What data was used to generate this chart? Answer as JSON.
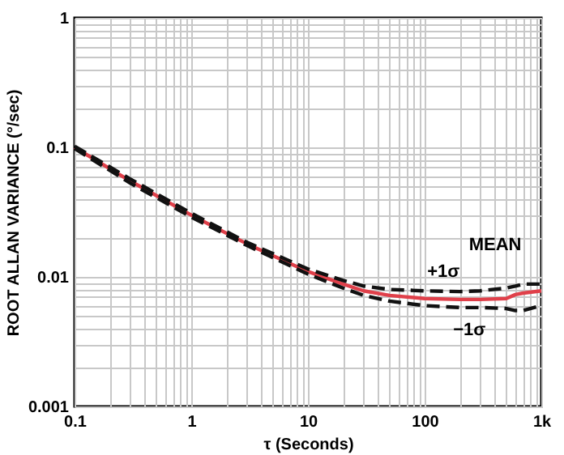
{
  "chart_data": {
    "type": "line",
    "xlabel": "τ (Seconds)",
    "ylabel": "ROOT ALLAN VARIANCE (°/sec)",
    "log": "xy",
    "grid": true,
    "x": [
      0.1,
      0.3,
      1,
      3,
      10,
      20,
      30,
      50,
      100,
      200,
      300,
      500,
      600,
      700,
      1000
    ],
    "xlim": [
      0.1,
      1000
    ],
    "xticks": [
      0.1,
      1,
      10,
      100,
      {
        "value": 1000,
        "label": "1k"
      }
    ],
    "ylim": [
      0.001,
      1
    ],
    "yticks": [
      0.001,
      0.01,
      0.1,
      1
    ],
    "series": [
      {
        "color": "#e0404a",
        "line_style": "solid",
        "values": [
          0.1,
          0.055,
          0.03,
          0.018,
          0.011,
          0.0088,
          0.0078,
          0.0072,
          0.0068,
          0.0067,
          0.0067,
          0.0068,
          0.0073,
          0.0075,
          0.0078
        ]
      },
      {
        "color": "#111111",
        "line_style": "dashed",
        "values": [
          0.102,
          0.057,
          0.031,
          0.0185,
          0.0115,
          0.0094,
          0.0085,
          0.008,
          0.0078,
          0.0077,
          0.0078,
          0.0082,
          0.0085,
          0.0088,
          0.0088
        ]
      },
      {
        "color": "#111111",
        "line_style": "dashed",
        "values": [
          0.098,
          0.053,
          0.029,
          0.0175,
          0.0105,
          0.0082,
          0.0072,
          0.0065,
          0.006,
          0.0058,
          0.0058,
          0.0057,
          0.0055,
          0.0055,
          0.006
        ]
      }
    ],
    "annotations": [
      "MEAN",
      "+1σ",
      "−1σ"
    ]
  }
}
